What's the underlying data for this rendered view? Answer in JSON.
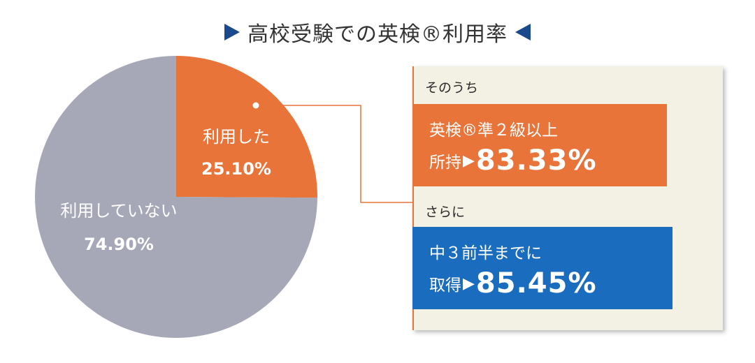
{
  "title": {
    "text": "高校受験での英検®利用率",
    "marker_color": "#1a4a8c"
  },
  "chart_data": {
    "type": "pie",
    "slices": [
      {
        "label": "利用した",
        "value": 25.1,
        "value_label": "25.10%",
        "color": "#e9743a"
      },
      {
        "label": "利用していない",
        "value": 74.9,
        "value_label": "74.90%",
        "color": "#a6a8b7"
      }
    ]
  },
  "callout": {
    "connector_color": "#e9743a",
    "panel_color": "#f3f0e4",
    "section1": {
      "label": "そのうち",
      "line1": "英検®準２級以上",
      "prefix": "所持",
      "arrow": "▶",
      "value": "83.33%",
      "color": "#e9743a"
    },
    "section2": {
      "label": "さらに",
      "line1": "中３前半までに",
      "prefix": "取得",
      "arrow": "▶",
      "value": "85.45%",
      "color": "#1a6cbf"
    }
  }
}
